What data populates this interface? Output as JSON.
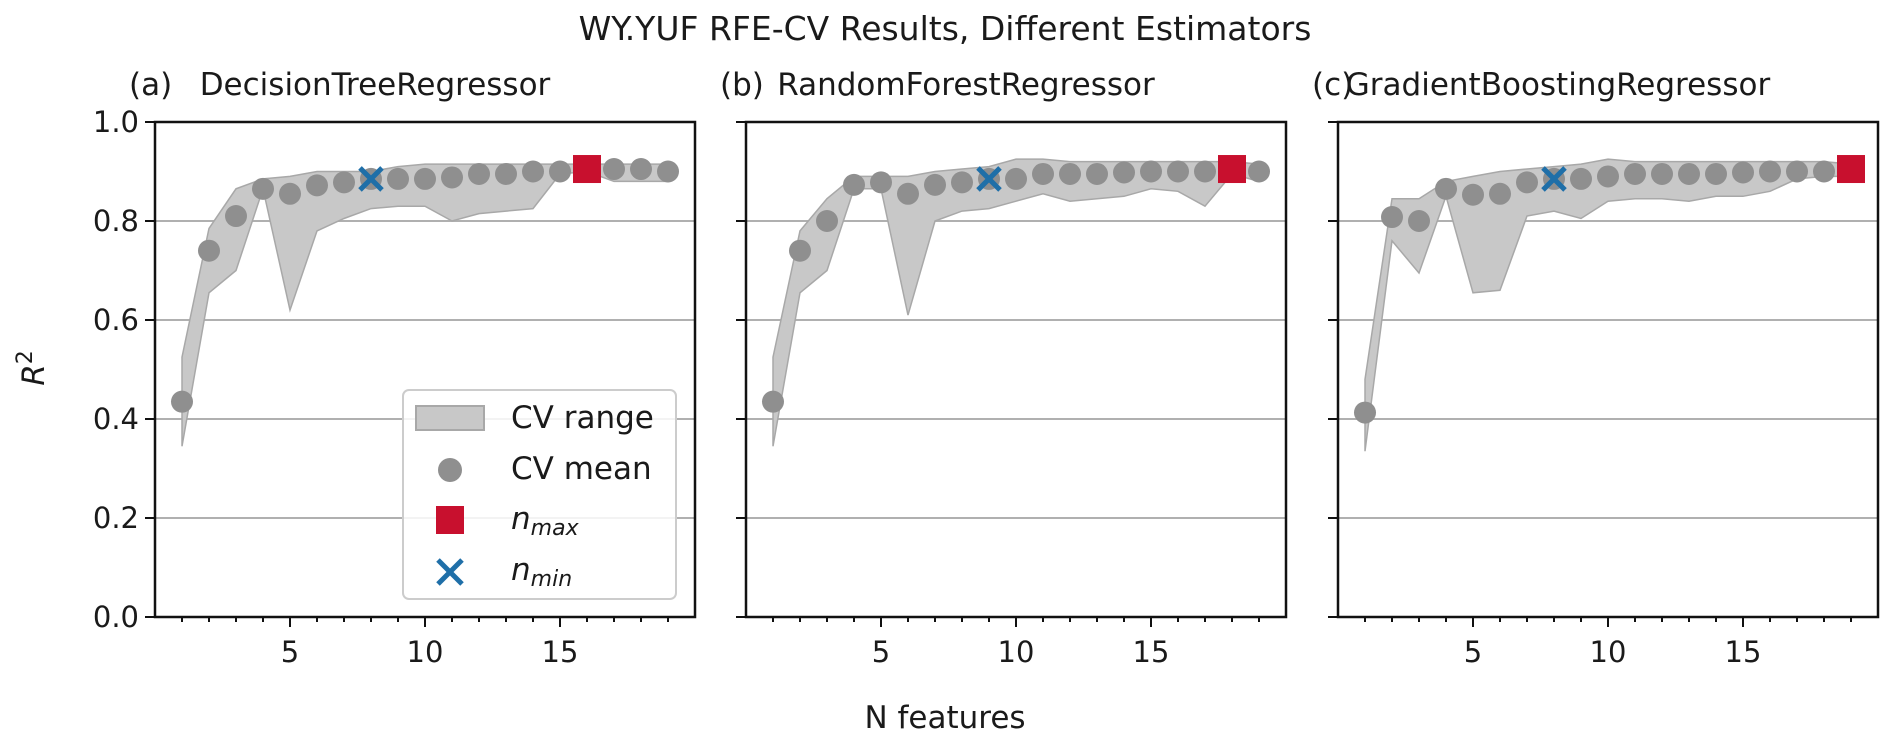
{
  "figure": {
    "title": "WY.YUF RFE-CV Results, Different Estimators",
    "xlabel": "N features",
    "ylabel_main": "R",
    "ylabel_sup": "2"
  },
  "legend": {
    "placement": "lower-right of first panel",
    "range_label": "CV range",
    "mean_label": "CV mean",
    "max_label_main": "n",
    "max_label_sub": "max",
    "min_label_main": "n",
    "min_label_sub": "min"
  },
  "colors": {
    "band": "#c8c8c8",
    "band_edge": "#a8a8a8",
    "mean": "#8f8f8f",
    "nmax": "#c8102e",
    "nmin": "#1f6fa8",
    "grid": "#b0b0b0"
  },
  "chart_data": [
    {
      "type": "scatter",
      "panel_tag": "(a)",
      "title": "DecisionTreeRegressor",
      "x": [
        1,
        2,
        3,
        4,
        5,
        6,
        7,
        8,
        9,
        10,
        11,
        12,
        13,
        14,
        15,
        16,
        17,
        18,
        19
      ],
      "mean": [
        0.435,
        0.74,
        0.81,
        0.865,
        0.855,
        0.872,
        0.878,
        0.885,
        0.885,
        0.885,
        0.888,
        0.895,
        0.895,
        0.9,
        0.9,
        0.905,
        0.905,
        0.905,
        0.9
      ],
      "range_low": [
        0.345,
        0.655,
        0.7,
        0.865,
        0.62,
        0.78,
        0.805,
        0.825,
        0.83,
        0.83,
        0.8,
        0.815,
        0.82,
        0.825,
        0.895,
        0.9,
        0.88,
        0.88,
        0.88
      ],
      "range_high": [
        0.525,
        0.785,
        0.865,
        0.885,
        0.89,
        0.9,
        0.9,
        0.9,
        0.91,
        0.915,
        0.915,
        0.915,
        0.915,
        0.915,
        0.915,
        0.915,
        0.915,
        0.915,
        0.915
      ],
      "n_max": {
        "x": 16,
        "y": 0.905
      },
      "n_min": {
        "x": 8,
        "y": 0.885
      },
      "xlim": [
        0,
        20
      ],
      "ylim": [
        0,
        1
      ],
      "xticks": [
        5,
        10,
        15
      ],
      "yticks": [
        0.0,
        0.2,
        0.4,
        0.6,
        0.8,
        1.0
      ],
      "ytick_labels": [
        "0.0",
        "0.2",
        "0.4",
        "0.6",
        "0.8",
        "1.0"
      ],
      "grid": "horizontal"
    },
    {
      "type": "scatter",
      "panel_tag": "(b)",
      "title": "RandomForestRegressor",
      "x": [
        1,
        2,
        3,
        4,
        5,
        6,
        7,
        8,
        9,
        10,
        11,
        12,
        13,
        14,
        15,
        16,
        17,
        18,
        19
      ],
      "mean": [
        0.435,
        0.74,
        0.8,
        0.873,
        0.878,
        0.855,
        0.873,
        0.878,
        0.885,
        0.885,
        0.895,
        0.895,
        0.895,
        0.898,
        0.9,
        0.9,
        0.9,
        0.905,
        0.9
      ],
      "range_low": [
        0.345,
        0.655,
        0.7,
        0.865,
        0.865,
        0.61,
        0.8,
        0.82,
        0.825,
        0.84,
        0.855,
        0.84,
        0.845,
        0.85,
        0.865,
        0.86,
        0.83,
        0.895,
        0.88
      ],
      "range_high": [
        0.525,
        0.78,
        0.845,
        0.89,
        0.89,
        0.89,
        0.9,
        0.905,
        0.91,
        0.925,
        0.925,
        0.92,
        0.92,
        0.92,
        0.92,
        0.92,
        0.92,
        0.92,
        0.915
      ],
      "n_max": {
        "x": 18,
        "y": 0.905
      },
      "n_min": {
        "x": 9,
        "y": 0.885
      },
      "xlim": [
        0,
        20
      ],
      "ylim": [
        0,
        1
      ],
      "xticks": [
        5,
        10,
        15
      ],
      "yticks": [
        0.0,
        0.2,
        0.4,
        0.6,
        0.8,
        1.0
      ],
      "ytick_labels": [
        "",
        "",
        "",
        "",
        "",
        ""
      ],
      "grid": "horizontal"
    },
    {
      "type": "scatter",
      "panel_tag": "(c)",
      "title": "GradientBoostingRegressor",
      "x": [
        1,
        2,
        3,
        4,
        5,
        6,
        7,
        8,
        9,
        10,
        11,
        12,
        13,
        14,
        15,
        16,
        17,
        18,
        19
      ],
      "mean": [
        0.413,
        0.808,
        0.8,
        0.865,
        0.853,
        0.855,
        0.878,
        0.885,
        0.885,
        0.89,
        0.895,
        0.895,
        0.895,
        0.895,
        0.898,
        0.9,
        0.9,
        0.9,
        0.905
      ],
      "range_low": [
        0.335,
        0.76,
        0.695,
        0.85,
        0.655,
        0.66,
        0.81,
        0.82,
        0.805,
        0.84,
        0.845,
        0.845,
        0.84,
        0.85,
        0.85,
        0.86,
        0.885,
        0.89,
        0.89
      ],
      "range_high": [
        0.48,
        0.845,
        0.845,
        0.88,
        0.89,
        0.9,
        0.905,
        0.91,
        0.915,
        0.925,
        0.92,
        0.92,
        0.92,
        0.92,
        0.92,
        0.92,
        0.92,
        0.92,
        0.915
      ],
      "n_max": {
        "x": 19,
        "y": 0.905
      },
      "n_min": {
        "x": 8,
        "y": 0.885
      },
      "xlim": [
        0,
        20
      ],
      "ylim": [
        0,
        1
      ],
      "xticks": [
        5,
        10,
        15
      ],
      "yticks": [
        0.0,
        0.2,
        0.4,
        0.6,
        0.8,
        1.0
      ],
      "ytick_labels": [
        "",
        "",
        "",
        "",
        "",
        ""
      ],
      "grid": "horizontal"
    }
  ]
}
